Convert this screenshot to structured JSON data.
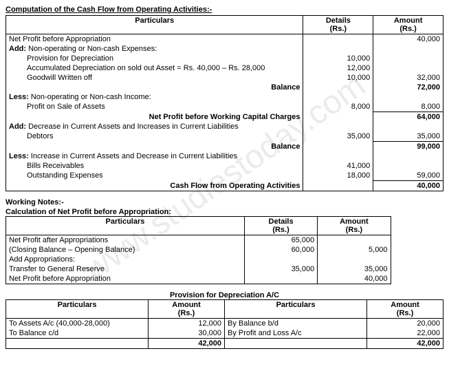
{
  "watermark": "www.studiestoday.com",
  "table1": {
    "title": "Computation of the Cash Flow from Operating Activities:-",
    "headers": {
      "particulars": "Particulars",
      "details": "Details\n(Rs.)",
      "amount": "Amount\n(Rs.)"
    },
    "rows": [
      {
        "label": "Net Profit before Appropriation",
        "details": "",
        "amount": "40,000"
      },
      {
        "label_html": "<span class='bold'>Add:</span> Non-operating or Non-cash Expenses:",
        "details": "",
        "amount": ""
      },
      {
        "label": "Provision for Depreciation",
        "indent": true,
        "details": "10,000",
        "amount": ""
      },
      {
        "label": "Accumulated Depreciation on sold out Asset = Rs. 40,000 – Rs. 28,000",
        "indent": true,
        "details": "12,000",
        "amount": ""
      },
      {
        "label": "Goodwill Written off",
        "indent": true,
        "details": "10,000",
        "amount": "32,000"
      },
      {
        "label": "Balance",
        "right_bold": true,
        "details": "",
        "amount": "72,000",
        "amount_bold": true
      },
      {
        "label_html": "<span class='bold'>Less:</span> Non-operating or Non-cash Income:",
        "details": "",
        "amount": ""
      },
      {
        "label": "Profit on Sale of Assets",
        "indent": true,
        "details": "8,000",
        "amount": "8,000",
        "amount_underline": true
      },
      {
        "label": "Net Profit before Working Capital Charges",
        "right_bold": true,
        "details": "",
        "amount": "64,000",
        "amount_bold": true
      },
      {
        "label_html": "<span class='bold'>Add:</span> Decrease in Current Assets and Increases in Current Liabilities",
        "details": "",
        "amount": ""
      },
      {
        "label": "Debtors",
        "indent": true,
        "details": "35,000",
        "amount": "35,000",
        "amount_underline": true
      },
      {
        "label": "Balance",
        "right_bold": true,
        "details": "",
        "amount": "99,000",
        "amount_bold": true
      },
      {
        "label_html": "<span class='bold'>Less:</span> Increase in Current Assets and Decrease in Current Liabilities",
        "details": "",
        "amount": ""
      },
      {
        "label": "Bills Receivables",
        "indent": true,
        "details": "41,000",
        "amount": ""
      },
      {
        "label": "Outstanding Expenses",
        "indent": true,
        "details": "18,000",
        "amount": "59,000",
        "amount_underline": true
      },
      {
        "label": "Cash Flow from Operating Activities",
        "right_bold": true,
        "details": "",
        "amount": "40,000",
        "amount_bold": true
      }
    ]
  },
  "table2": {
    "working_title": "Working Notes:-",
    "calc_title": "Calculation of Net Profit before Appropriation:",
    "headers": {
      "particulars": "Particulars",
      "details": "Details\n(Rs.)",
      "amount": "Amount\n(Rs.)"
    },
    "rows": [
      {
        "label": "Net Profit after Appropriations",
        "details": "65,000",
        "amount": ""
      },
      {
        "label": "(Closing Balance – Opening Balance)",
        "details": "60,000",
        "amount": "5,000"
      },
      {
        "label": "Add Appropriations:",
        "details": "",
        "amount": ""
      },
      {
        "label": "Transfer to General Reserve",
        "details": "35,000",
        "amount": "35,000"
      },
      {
        "label": "Net Profit before Appropriation",
        "details": "",
        "amount": "40,000"
      }
    ]
  },
  "table3": {
    "title": "Provision for Depreciation A/C",
    "headers": {
      "particulars": "Particulars",
      "amount": "Amount\n(Rs.)"
    },
    "left": [
      {
        "label": "To Assets A/c (40,000-28,000)",
        "amount": "12,000"
      },
      {
        "label": "To Balance c/d",
        "amount": "30,000"
      }
    ],
    "left_total": "42,000",
    "right": [
      {
        "label": "By Balance b/d",
        "amount": "20,000"
      },
      {
        "label": "By Profit and Loss A/c",
        "amount": "22,000"
      }
    ],
    "right_total": "42,000"
  }
}
